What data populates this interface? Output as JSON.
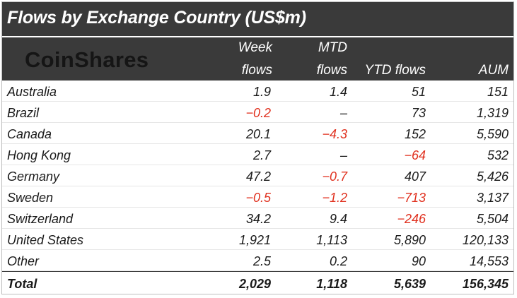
{
  "title": "Flows by Exchange Country (US$m)",
  "logo_text": "CoinShares",
  "columns": {
    "week_line1": "Week",
    "week_line2": "flows",
    "mtd_line1": "MTD",
    "mtd_line2": "flows",
    "ytd": "YTD flows",
    "aum": "AUM"
  },
  "rows": [
    {
      "country": "Australia",
      "week": "1.9",
      "mtd": "1.4",
      "ytd": "51",
      "aum": "151"
    },
    {
      "country": "Brazil",
      "week": "-0.2",
      "mtd": "-",
      "ytd": "73",
      "aum": "1,319"
    },
    {
      "country": "Canada",
      "week": "20.1",
      "mtd": "-4.3",
      "ytd": "152",
      "aum": "5,590"
    },
    {
      "country": "Hong Kong",
      "week": "2.7",
      "mtd": "-",
      "ytd": "-64",
      "aum": "532"
    },
    {
      "country": "Germany",
      "week": "47.2",
      "mtd": "-0.7",
      "ytd": "407",
      "aum": "5,426"
    },
    {
      "country": "Sweden",
      "week": "-0.5",
      "mtd": "-1.2",
      "ytd": "-713",
      "aum": "3,137"
    },
    {
      "country": "Switzerland",
      "week": "34.2",
      "mtd": "9.4",
      "ytd": "-246",
      "aum": "5,504"
    },
    {
      "country": "United States",
      "week": "1,921",
      "mtd": "1,113",
      "ytd": "5,890",
      "aum": "120,133"
    },
    {
      "country": "Other",
      "week": "2.5",
      "mtd": "0.2",
      "ytd": "90",
      "aum": "14,553"
    }
  ],
  "total": {
    "label": "Total",
    "week": "2,029",
    "mtd": "1,118",
    "ytd": "5,639",
    "aum": "156,345"
  },
  "colors": {
    "header_bg": "#3a3a3a",
    "negative": "#e0301e",
    "text": "#1a1a1a"
  }
}
